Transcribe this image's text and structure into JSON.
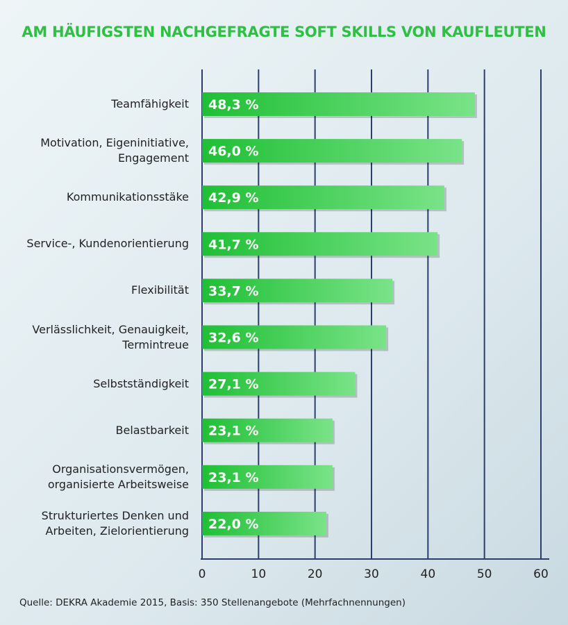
{
  "chart_data": {
    "type": "barh",
    "title": "AM HÄUFIGSTEN NACHGEFRAGTE SOFT SKILLS VON KAUFLEUTEN",
    "categories": [
      "Teamfähigkeit",
      "Motivation, Eigeninitiative, Engagement",
      "Kommunikationsstäke",
      "Service-, Kundenorientierung",
      "Flexibilität",
      "Verlässlichkeit, Genauigkeit, Termintreue",
      "Selbstständigkeit",
      "Belastbarkeit",
      "Organisationsvermögen, organisierte Arbeitsweise",
      "Strukturiertes Denken und Arbeiten, Zielorientierung"
    ],
    "values": [
      48.3,
      46.0,
      42.9,
      41.7,
      33.7,
      32.6,
      27.1,
      23.1,
      23.1,
      22.0
    ],
    "value_labels": [
      "48,3 %",
      "46,0 %",
      "42,9 %",
      "41,7 %",
      "33,7 %",
      "32,6 %",
      "27,1 %",
      "23,1 %",
      "23,1 %",
      "22,0 %"
    ],
    "color": "#2fcc45",
    "xlim": [
      0,
      60
    ],
    "xticks": [
      0,
      10,
      20,
      30,
      40,
      50,
      60
    ],
    "grid": true,
    "source": "Quelle: DEKRA Akademie 2015, Basis: 350 Stellenangebote (Mehrfachnennungen)"
  }
}
